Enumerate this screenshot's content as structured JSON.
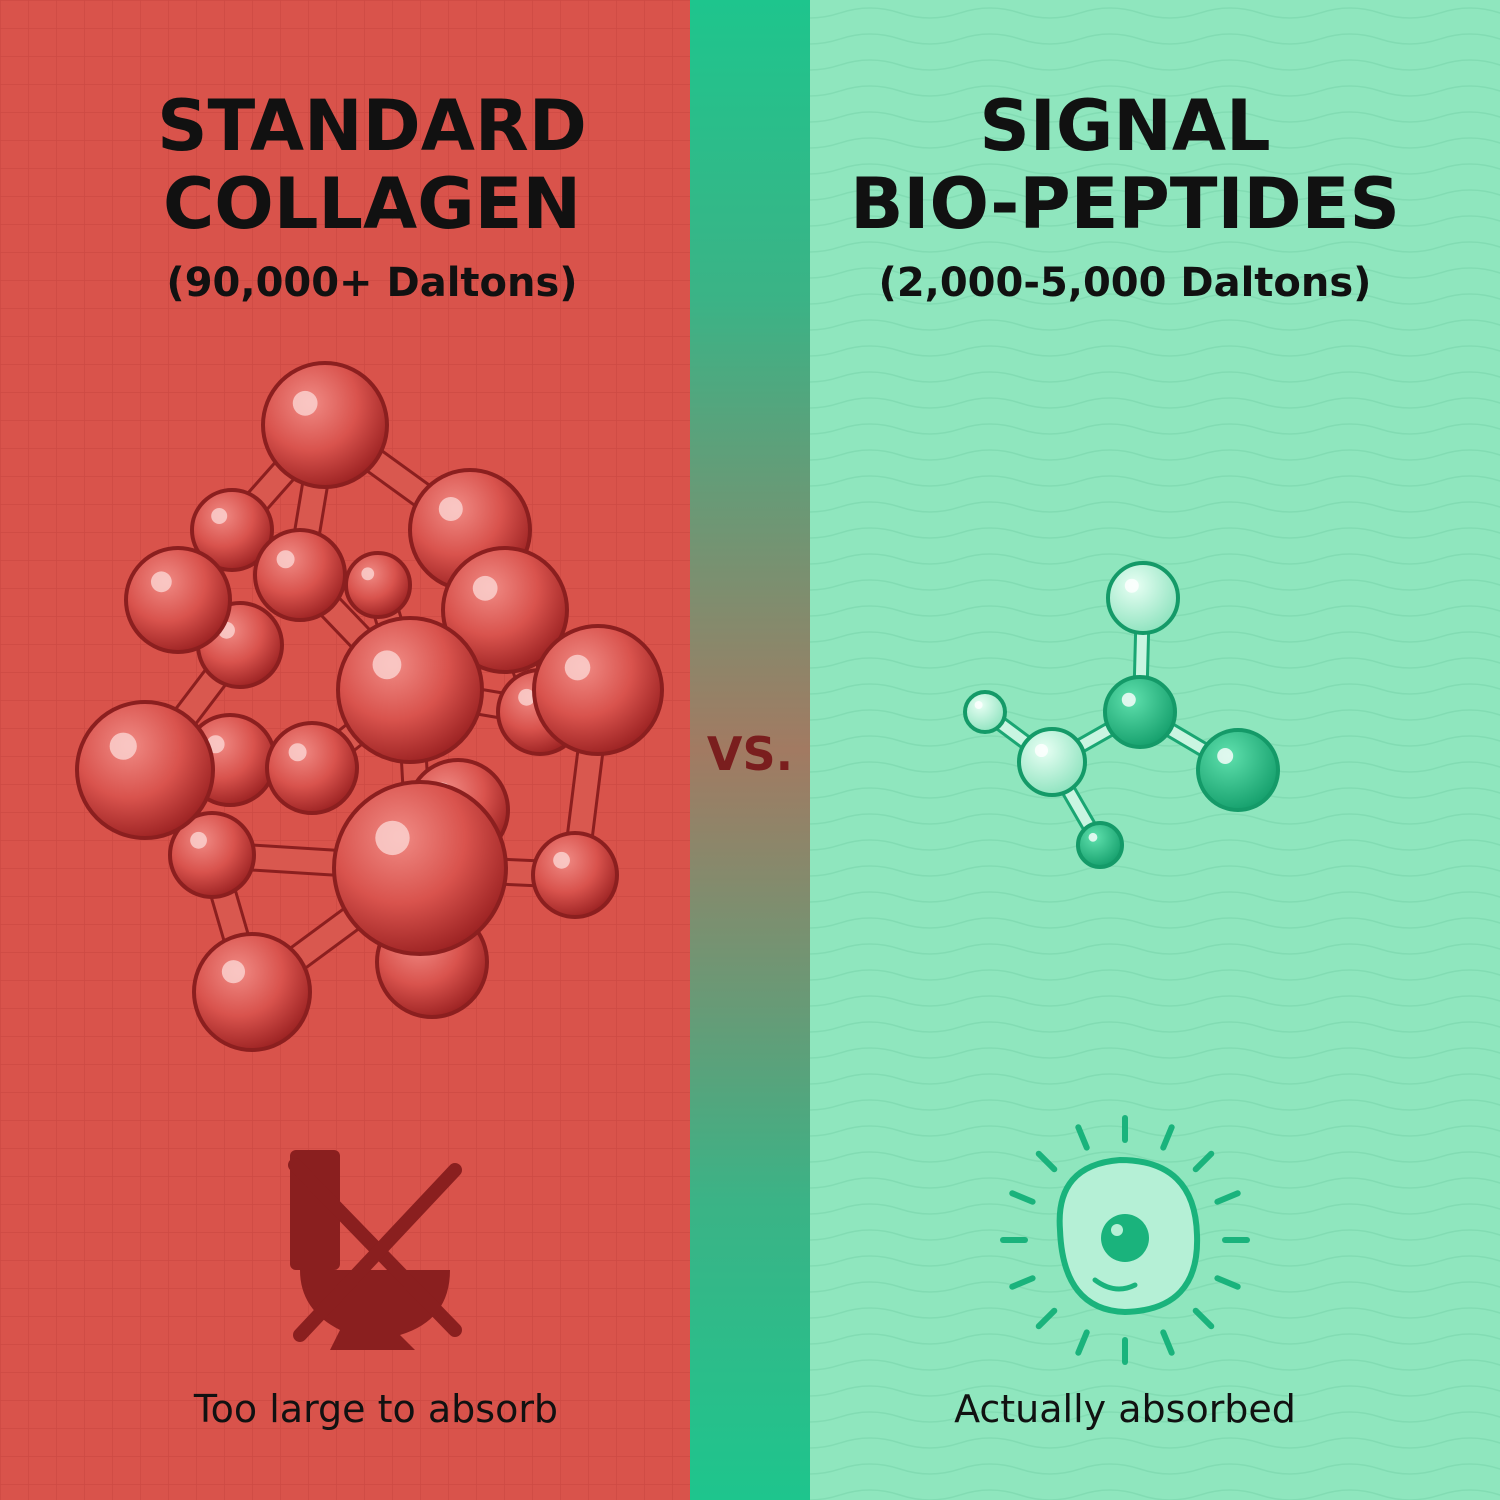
{
  "left": {
    "title_lines": [
      "STANDARD",
      "COLLAGEN"
    ],
    "subtitle": "(90,000+ Daltons)",
    "caption": "Too large to absorb"
  },
  "divider": {
    "label": "VS."
  },
  "right": {
    "title_lines": [
      "SIGNAL",
      "BIO-PEPTIDES"
    ],
    "subtitle": "(2,000-5,000 Daltons)",
    "caption": "Actually absorbed"
  }
}
